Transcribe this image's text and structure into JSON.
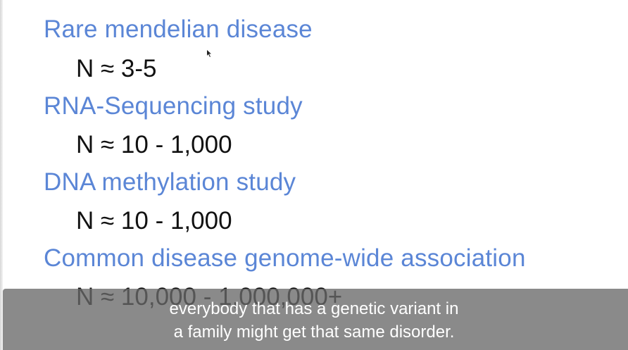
{
  "slide": {
    "items": [
      {
        "heading": "Rare mendelian disease",
        "value": "N ≈ 3-5"
      },
      {
        "heading": "RNA-Sequencing study",
        "value": "N ≈ 10 - 1,000"
      },
      {
        "heading": "DNA methylation study",
        "value": "N ≈ 10 - 1,000"
      },
      {
        "heading": "Common disease genome-wide association",
        "value": "N ≈ 10,000 - 1,000,000+"
      }
    ]
  },
  "captions": {
    "line1": "everybody that has a genetic variant in",
    "line2": "a family might get that same disorder."
  },
  "colors": {
    "heading": "#5b86d6",
    "value": "#111111",
    "caption_bg": "#696969"
  }
}
